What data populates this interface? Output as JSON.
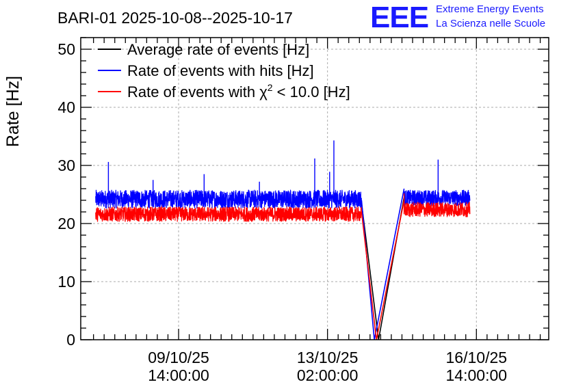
{
  "chart_data": {
    "type": "line",
    "title": "BARI-01 2025-10-08--2025-10-17",
    "ylabel": "Rate [Hz]",
    "xlabel": "",
    "ylim": [
      0,
      52
    ],
    "yticks": [
      0,
      10,
      20,
      30,
      40,
      50
    ],
    "xticks": [
      {
        "date": "09/10/25",
        "time": "14:00:00",
        "pos": 1.5
      },
      {
        "date": "13/10/25",
        "time": "02:00:00",
        "pos": 5.0
      },
      {
        "date": "16/10/25",
        "time": "14:00:00",
        "pos": 8.5
      }
    ],
    "xlim": [
      -0.8,
      10.2
    ],
    "grid": true,
    "legend_position": "top-left",
    "series": [
      {
        "name": "Average rate of events [Hz]",
        "legend_label": "Average rate of events [Hz]",
        "color": "#000000",
        "points": [
          [
            5.8,
            23.5
          ],
          [
            6.2,
            0.0
          ],
          [
            6.8,
            24.5
          ]
        ]
      },
      {
        "name": "Rate of events with hits [Hz]",
        "legend_label": "Rate of events with hits [Hz]",
        "color": "#0000ff",
        "segments": [
          {
            "x_start": -0.45,
            "x_end": 5.8,
            "mean": 24.2,
            "spread": 1.6
          },
          {
            "x_start": 6.8,
            "x_end": 8.35,
            "mean": 24.4,
            "spread": 1.4
          }
        ],
        "points": [
          [
            5.8,
            24.0
          ],
          [
            6.1,
            0.0
          ],
          [
            6.8,
            26.0
          ]
        ],
        "spikes": [
          [
            -0.15,
            30.6
          ],
          [
            2.1,
            28.5
          ],
          [
            4.7,
            31.2
          ],
          [
            5.15,
            34.3
          ],
          [
            7.6,
            31.0
          ],
          [
            0.9,
            27.5
          ],
          [
            3.4,
            27.2
          ],
          [
            5.05,
            28.9
          ]
        ]
      },
      {
        "name": "Rate of events with chi2 < 10.0 [Hz]",
        "legend_label": "Rate of events with χ² < 10.0 [Hz]",
        "color": "#ff0000",
        "segments": [
          {
            "x_start": -0.45,
            "x_end": 5.8,
            "mean": 21.6,
            "spread": 1.3
          },
          {
            "x_start": 6.8,
            "x_end": 8.35,
            "mean": 22.4,
            "spread": 1.3
          }
        ],
        "points": [
          [
            5.8,
            22.0
          ],
          [
            6.15,
            0.0
          ],
          [
            6.8,
            24.0
          ]
        ],
        "spikes": [
          [
            6.8,
            25.2
          ]
        ]
      }
    ],
    "legend": {
      "avg": "Average rate of events [Hz]",
      "hits_prefix": "Rate of events with hits [Hz]",
      "chi_prefix": "Rate of events with χ",
      "chi_sup": "2",
      "chi_suffix": " < 10.0 [Hz]"
    }
  },
  "logo": {
    "mark": "EEE",
    "line1": "Extreme Energy Events",
    "line2": "La Scienza nelle Scuole"
  }
}
